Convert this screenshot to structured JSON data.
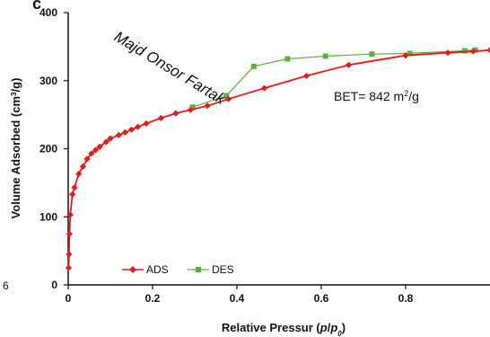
{
  "chart_data": {
    "type": "line",
    "title": "",
    "panel_letter": "c",
    "stray_left_label": "6",
    "xlabel": {
      "main": "Relative Pressur (",
      "p": "p",
      "slash": "/",
      "p0": "p",
      "p0_sub": "0",
      "close": ")"
    },
    "ylabel": {
      "main": "Volume Adsorbed (cm",
      "sup": "3",
      "tail": "/g)"
    },
    "xlim": [
      0,
      1.0
    ],
    "ylim": [
      0,
      400
    ],
    "xticks": [
      "0",
      "0.2",
      "0.4",
      "0.6",
      "0.8"
    ],
    "xtick_values": [
      0,
      0.2,
      0.4,
      0.6,
      0.8
    ],
    "yticks": [
      "0",
      "100",
      "200",
      "300",
      "400"
    ],
    "ytick_values": [
      0,
      100,
      200,
      300,
      400
    ],
    "grid": false,
    "legend_position": "bottom-left",
    "series": [
      {
        "name": "ADS",
        "color": "#e8191b",
        "marker": "diamond",
        "points": [
          [
            0.001,
            25
          ],
          [
            0.002,
            45
          ],
          [
            0.003,
            75
          ],
          [
            0.005,
            103
          ],
          [
            0.01,
            133
          ],
          [
            0.015,
            143
          ],
          [
            0.025,
            163
          ],
          [
            0.035,
            174
          ],
          [
            0.045,
            185
          ],
          [
            0.055,
            193
          ],
          [
            0.065,
            198
          ],
          [
            0.075,
            203
          ],
          [
            0.09,
            210
          ],
          [
            0.1,
            215
          ],
          [
            0.12,
            220
          ],
          [
            0.135,
            224
          ],
          [
            0.15,
            228
          ],
          [
            0.165,
            232
          ],
          [
            0.185,
            237
          ],
          [
            0.22,
            245
          ],
          [
            0.255,
            252
          ],
          [
            0.29,
            257
          ],
          [
            0.33,
            263
          ],
          [
            0.38,
            273
          ],
          [
            0.465,
            289
          ],
          [
            0.565,
            307
          ],
          [
            0.665,
            323
          ],
          [
            0.8,
            337
          ],
          [
            0.9,
            341
          ],
          [
            0.96,
            343
          ],
          [
            1.0,
            345
          ]
        ]
      },
      {
        "name": "DES",
        "color": "#55b33b",
        "marker": "square",
        "points": [
          [
            0.295,
            261
          ],
          [
            0.375,
            278
          ],
          [
            0.44,
            321
          ],
          [
            0.52,
            332
          ],
          [
            0.61,
            336
          ],
          [
            0.72,
            339
          ],
          [
            0.81,
            340
          ],
          [
            0.94,
            344
          ],
          [
            0.965,
            345
          ]
        ]
      }
    ],
    "annotations": {
      "watermark": "Majd Onsor Fartak",
      "bet_prefix": "BET= 842 m",
      "bet_sup": "2",
      "bet_suffix": "/g"
    },
    "colors": {
      "axis": "#111111",
      "ads": "#e8191b",
      "des": "#55b33b"
    }
  }
}
